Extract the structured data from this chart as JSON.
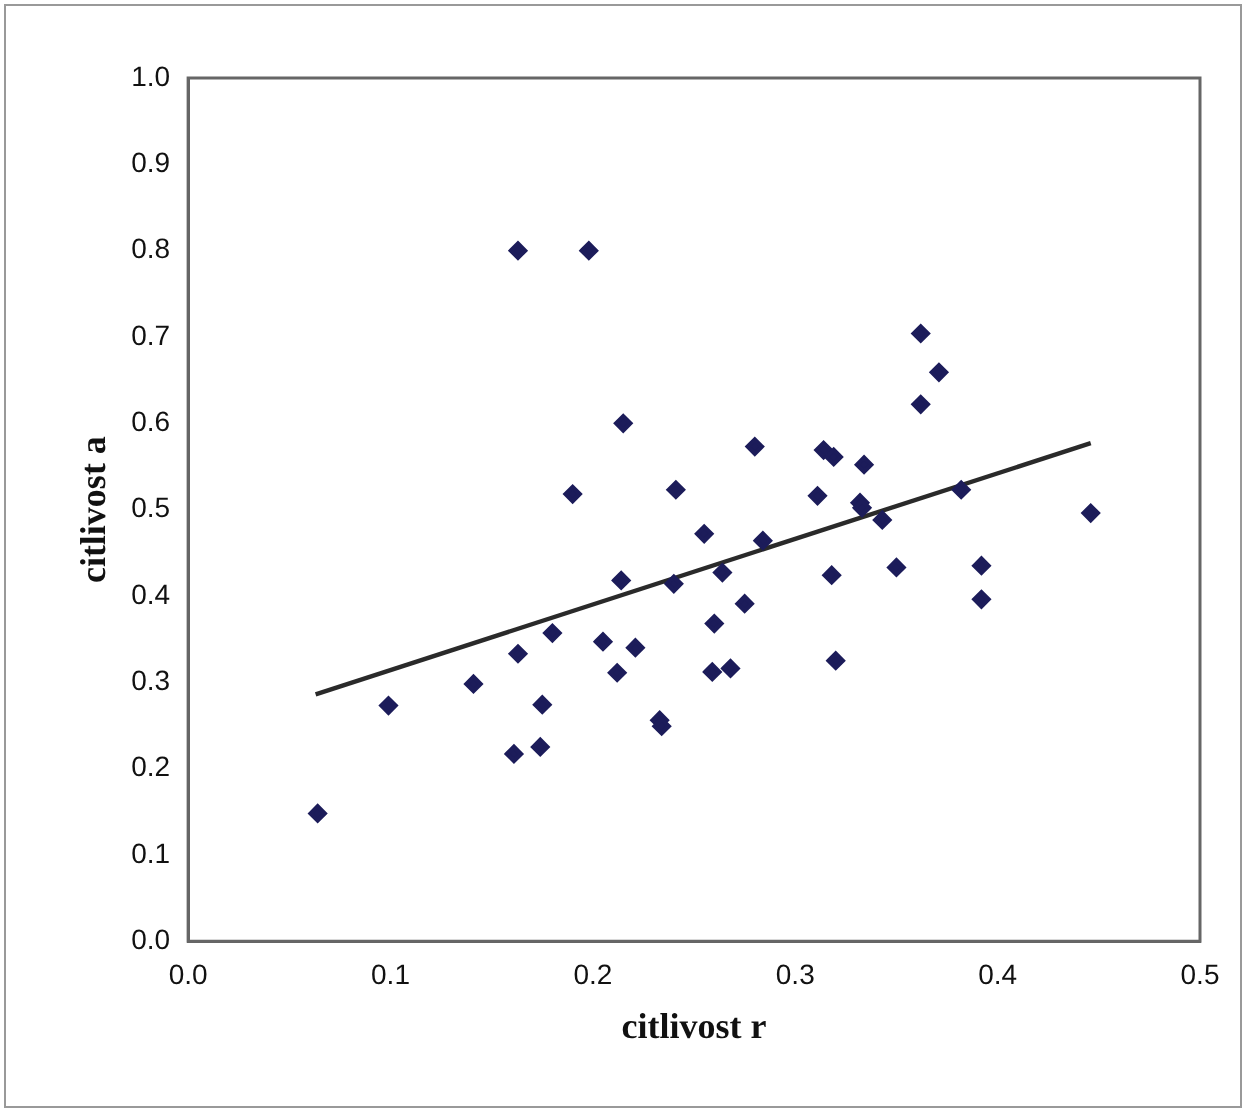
{
  "chart_data": {
    "type": "scatter",
    "xlabel": "citlivost r",
    "ylabel": "citlivost a",
    "xlim": [
      0,
      0.5
    ],
    "xticks": [
      {
        "value": 0,
        "label": "0.0"
      },
      0.1,
      0.2,
      0.3,
      0.4,
      0.5
    ],
    "ylim": [
      0,
      1
    ],
    "yticks": [
      {
        "value": 0,
        "label": "0.0"
      },
      0.1,
      0.2,
      0.3,
      0.4,
      0.5,
      0.6,
      0.7,
      0.8,
      0.9,
      {
        "value": 1,
        "label": "1.0"
      }
    ],
    "grid": false,
    "legend": false,
    "marker": "diamond",
    "series": [
      {
        "type": "scatter",
        "color": "#1c1c5a",
        "x": [
          0.064,
          0.099,
          0.141,
          0.163,
          0.198,
          0.215,
          0.19,
          0.241,
          0.214,
          0.18,
          0.163,
          0.205,
          0.221,
          0.212,
          0.175,
          0.174,
          0.161,
          0.233,
          0.234,
          0.362,
          0.371,
          0.362,
          0.28,
          0.314,
          0.319,
          0.334,
          0.311,
          0.332,
          0.333,
          0.343,
          0.382,
          0.446,
          0.255,
          0.284,
          0.264,
          0.24,
          0.318,
          0.35,
          0.392,
          0.275,
          0.392,
          0.26,
          0.259,
          0.268,
          0.32
        ],
        "values": [
          0.148,
          0.273,
          0.298,
          0.8,
          0.8,
          0.6,
          0.518,
          0.523,
          0.418,
          0.357,
          0.333,
          0.347,
          0.34,
          0.311,
          0.274,
          0.225,
          0.217,
          0.256,
          0.249,
          0.704,
          0.659,
          0.622,
          0.573,
          0.569,
          0.561,
          0.552,
          0.516,
          0.508,
          0.502,
          0.488,
          0.523,
          0.496,
          0.472,
          0.464,
          0.427,
          0.414,
          0.424,
          0.433,
          0.435,
          0.391,
          0.396,
          0.368,
          0.312,
          0.316,
          0.325
        ]
      },
      {
        "type": "line",
        "color": "#2a2a2a",
        "marker": "none",
        "line_style": "solid",
        "x": [
          0.063,
          0.446
        ],
        "values": [
          0.286,
          0.577
        ]
      }
    ]
  }
}
